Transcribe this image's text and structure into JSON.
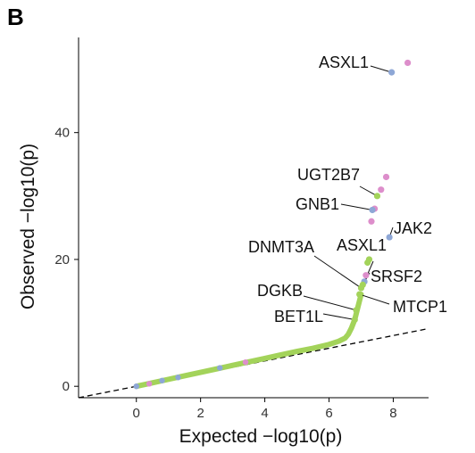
{
  "panel_label": "B",
  "colors": {
    "green": "#a3d35a",
    "blue": "#8ea7d6",
    "pink": "#dd8ecb",
    "axis": "#000000",
    "line": "#000000"
  },
  "chart_data": {
    "type": "scatter",
    "title": "",
    "xlabel": "Expected −log10(p)",
    "ylabel": "Observed −log10(p)",
    "xlim": [
      -1.8,
      9.1
    ],
    "ylim": [
      -1.8,
      55
    ],
    "xticks": [
      0,
      2,
      4,
      6,
      8
    ],
    "yticks": [
      0,
      20,
      40
    ],
    "reference_line": {
      "style": "dashed",
      "x": [
        -1.8,
        9.1
      ],
      "y": [
        -1.8,
        9.1
      ]
    },
    "bulk_curve": {
      "x": [
        0,
        0.5,
        1,
        1.5,
        2,
        2.5,
        3,
        3.5,
        4,
        4.5,
        5,
        5.5,
        6,
        6.3,
        6.5,
        6.6,
        6.7,
        6.8,
        6.85,
        6.9,
        6.95,
        7.0
      ],
      "y": [
        0,
        0.55,
        1.1,
        1.65,
        2.2,
        2.75,
        3.3,
        3.85,
        4.4,
        4.95,
        5.5,
        6.0,
        6.6,
        7.1,
        7.6,
        8.2,
        9.2,
        10.5,
        11.5,
        12.5,
        13.5,
        14.5
      ]
    },
    "points": [
      {
        "x": 8.45,
        "y": 51.0,
        "color": "pink"
      },
      {
        "x": 7.95,
        "y": 49.5,
        "color": "blue",
        "label": "ASXL1"
      },
      {
        "x": 7.78,
        "y": 33.0,
        "color": "pink"
      },
      {
        "x": 7.62,
        "y": 31.0,
        "color": "pink"
      },
      {
        "x": 7.5,
        "y": 30.0,
        "color": "green",
        "label": "UGT2B7"
      },
      {
        "x": 7.42,
        "y": 28.0,
        "color": "pink"
      },
      {
        "x": 7.35,
        "y": 27.8,
        "color": "blue",
        "label": "GNB1"
      },
      {
        "x": 7.32,
        "y": 26.0,
        "color": "pink"
      },
      {
        "x": 7.88,
        "y": 23.5,
        "color": "blue",
        "label": "JAK2"
      },
      {
        "x": 7.25,
        "y": 20.0,
        "color": "green"
      },
      {
        "x": 7.2,
        "y": 19.5,
        "color": "green"
      },
      {
        "x": 7.15,
        "y": 17.5,
        "color": "pink"
      },
      {
        "x": 7.1,
        "y": 16.5,
        "color": "blue",
        "label": "ASXL1"
      },
      {
        "x": 7.05,
        "y": 16.0,
        "color": "green",
        "label": "SRSF2"
      },
      {
        "x": 7.0,
        "y": 15.5,
        "color": "green",
        "label": "DNMT3A"
      },
      {
        "x": 6.95,
        "y": 14.5,
        "color": "green",
        "label": "MTCP1"
      },
      {
        "x": 6.85,
        "y": 12.0,
        "color": "green",
        "label": "DGKB"
      },
      {
        "x": 6.8,
        "y": 10.5,
        "color": "green",
        "label": "BET1L"
      }
    ],
    "annotations": [
      {
        "text": "ASXL1",
        "anchor": "end"
      },
      {
        "text": "UGT2B7",
        "anchor": "end"
      },
      {
        "text": "GNB1",
        "anchor": "end"
      },
      {
        "text": "JAK2",
        "anchor": "start"
      },
      {
        "text": "ASXL1",
        "anchor": "end"
      },
      {
        "text": "DNMT3A",
        "anchor": "end"
      },
      {
        "text": "SRSF2",
        "anchor": "start"
      },
      {
        "text": "DGKB",
        "anchor": "end"
      },
      {
        "text": "MTCP1",
        "anchor": "start"
      },
      {
        "text": "BET1L",
        "anchor": "end"
      }
    ]
  }
}
